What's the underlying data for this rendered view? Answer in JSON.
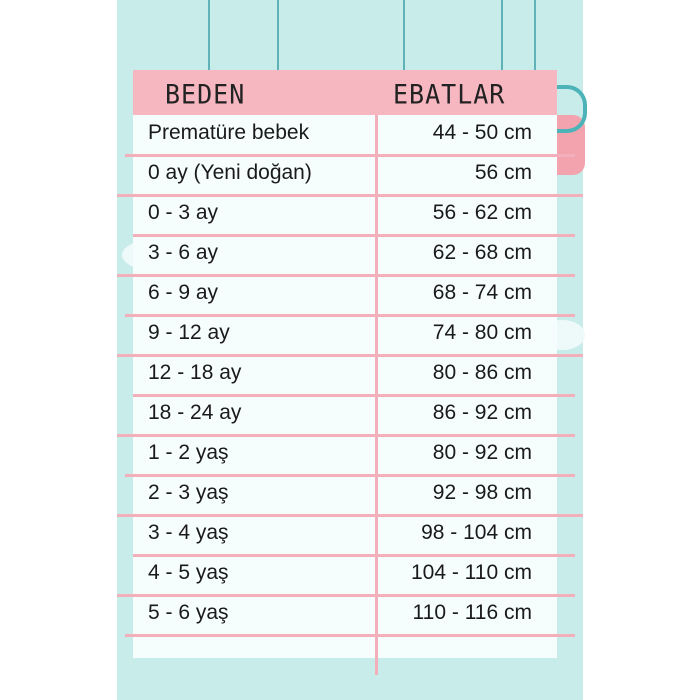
{
  "colors": {
    "background": "#c8ecea",
    "header": "#f7b7c0",
    "lines": "#f3b0bb"
  },
  "header": {
    "size": "BEDEN",
    "dimensions": "EBATLAR"
  },
  "rows": [
    {
      "size": "Prematüre bebek",
      "dim": "44 - 50 cm"
    },
    {
      "size": "0 ay (Yeni doğan)",
      "dim": "56 cm"
    },
    {
      "size": "0 - 3 ay",
      "dim": "56 - 62 cm"
    },
    {
      "size": "3 - 6 ay",
      "dim": "62 - 68 cm"
    },
    {
      "size": "6 - 9 ay",
      "dim": "68 - 74 cm"
    },
    {
      "size": "9 - 12 ay",
      "dim": "74 - 80 cm"
    },
    {
      "size": "12 - 18 ay",
      "dim": "80 - 86 cm"
    },
    {
      "size": "18 - 24 ay",
      "dim": "86 - 92 cm"
    },
    {
      "size": "1 - 2 yaş",
      "dim": "80 - 92 cm"
    },
    {
      "size": "2 - 3 yaş",
      "dim": "92 - 98 cm"
    },
    {
      "size": "3 - 4 yaş",
      "dim": "98 - 104 cm"
    },
    {
      "size": "4 - 5 yaş",
      "dim": "104 - 110 cm"
    },
    {
      "size": "5 - 6 yaş",
      "dim": "110 - 116 cm"
    }
  ]
}
